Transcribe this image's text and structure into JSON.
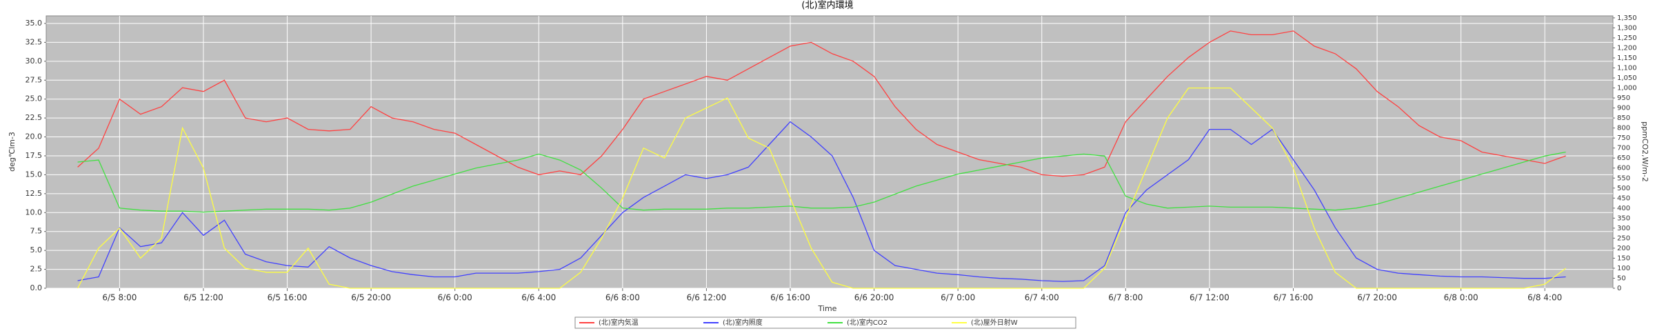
{
  "chart_data": {
    "type": "line",
    "title": "(北)室内環境",
    "x_label": "Time",
    "y_label": "deg℃lm-3",
    "y2_label": "ppmCO2,W/m-2",
    "x": [
      "6/5 6:00",
      "6/5 7:00",
      "6/5 8:00",
      "6/5 9:00",
      "6/5 10:00",
      "6/5 11:00",
      "6/5 12:00",
      "6/5 13:00",
      "6/5 14:00",
      "6/5 15:00",
      "6/5 16:00",
      "6/5 17:00",
      "6/5 18:00",
      "6/5 19:00",
      "6/5 20:00",
      "6/5 21:00",
      "6/5 22:00",
      "6/5 23:00",
      "6/6 0:00",
      "6/6 1:00",
      "6/6 2:00",
      "6/6 3:00",
      "6/6 4:00",
      "6/6 5:00",
      "6/6 6:00",
      "6/6 7:00",
      "6/6 8:00",
      "6/6 9:00",
      "6/6 10:00",
      "6/6 11:00",
      "6/6 12:00",
      "6/6 13:00",
      "6/6 14:00",
      "6/6 15:00",
      "6/6 16:00",
      "6/6 17:00",
      "6/6 18:00",
      "6/6 19:00",
      "6/6 20:00",
      "6/6 21:00",
      "6/6 22:00",
      "6/6 23:00",
      "6/7 0:00",
      "6/7 1:00",
      "6/7 2:00",
      "6/7 3:00",
      "6/7 4:00",
      "6/7 5:00",
      "6/7 6:00",
      "6/7 7:00",
      "6/7 8:00",
      "6/7 9:00",
      "6/7 10:00",
      "6/7 11:00",
      "6/7 12:00",
      "6/7 13:00",
      "6/7 14:00",
      "6/7 15:00",
      "6/7 16:00",
      "6/7 17:00",
      "6/7 18:00",
      "6/7 19:00",
      "6/7 20:00",
      "6/7 21:00",
      "6/7 22:00",
      "6/7 23:00",
      "6/8 0:00",
      "6/8 1:00",
      "6/8 2:00",
      "6/8 3:00",
      "6/8 4:00",
      "6/8 5:00"
    ],
    "xlim": [
      "6/5 4:30",
      "6/8 7:15"
    ],
    "xticks": [
      "6/5 8:00",
      "6/5 12:00",
      "6/5 16:00",
      "6/5 20:00",
      "6/6 0:00",
      "6/6 4:00",
      "6/6 8:00",
      "6/6 12:00",
      "6/6 16:00",
      "6/6 20:00",
      "6/7 0:00",
      "6/7 4:00",
      "6/7 8:00",
      "6/7 12:00",
      "6/7 16:00",
      "6/7 20:00",
      "6/8 0:00",
      "6/8 4:00"
    ],
    "ylim": [
      0,
      36
    ],
    "yticks": [
      {
        "value": 0,
        "label": "0.0"
      },
      2.5,
      {
        "value": 5,
        "label": "5.0"
      },
      7.5,
      {
        "value": 10,
        "label": "10.0"
      },
      12.5,
      {
        "value": 15,
        "label": "15.0"
      },
      17.5,
      {
        "value": 20,
        "label": "20.0"
      },
      22.5,
      {
        "value": 25,
        "label": "25.0"
      },
      27.5,
      {
        "value": 30,
        "label": "30.0"
      },
      32.5,
      {
        "value": 35,
        "label": "35.0"
      }
    ],
    "y2lim": [
      0,
      1360
    ],
    "y2ticks": [
      0,
      50,
      100,
      150,
      200,
      250,
      300,
      350,
      400,
      450,
      500,
      550,
      600,
      650,
      700,
      750,
      800,
      850,
      900,
      950,
      {
        "value": 1000,
        "label": "1,000"
      },
      {
        "value": 1050,
        "label": "1,050"
      },
      {
        "value": 1100,
        "label": "1,100"
      },
      {
        "value": 1150,
        "label": "1,150"
      },
      {
        "value": 1200,
        "label": "1,200"
      },
      {
        "value": 1250,
        "label": "1,250"
      },
      {
        "value": 1300,
        "label": "1,300"
      },
      {
        "value": 1350,
        "label": "1,350"
      }
    ],
    "grid": true,
    "series": [
      {
        "name": "(北)室内気温",
        "color": "#ff4040",
        "values": [
          16,
          18.5,
          25,
          23,
          24,
          26.5,
          26,
          27.5,
          22.5,
          22,
          22.5,
          21,
          20.8,
          21,
          24,
          22.5,
          22,
          21,
          20.5,
          19,
          17.5,
          16,
          15,
          15.5,
          15,
          17.5,
          21,
          25,
          26,
          27,
          28,
          27.5,
          29,
          30.5,
          32,
          32.5,
          31,
          30,
          28,
          24,
          21,
          19,
          18,
          17,
          16.5,
          16,
          15,
          14.8,
          15,
          16,
          22,
          25,
          28,
          30.5,
          32.5,
          34,
          33.5,
          33.5,
          34,
          32,
          31,
          29,
          26,
          24,
          21.5,
          20,
          19.5,
          18,
          17.5,
          17,
          16.5,
          17.5
        ]
      },
      {
        "name": "(北)室内照度",
        "color": "#4040ff",
        "values": [
          1,
          1.5,
          8,
          5.5,
          6,
          10,
          7,
          9,
          4.5,
          3.5,
          3,
          2.8,
          5.5,
          4,
          3,
          2.2,
          1.8,
          1.5,
          1.5,
          2,
          2,
          2,
          2.2,
          2.5,
          4,
          7,
          10,
          12,
          13.5,
          15,
          14.5,
          15,
          16,
          19,
          22,
          20,
          17.5,
          12,
          5,
          3,
          2.5,
          2,
          1.8,
          1.5,
          1.3,
          1.2,
          1,
          0.9,
          1,
          3,
          10,
          13,
          15,
          17,
          21,
          21,
          19,
          21,
          17,
          13,
          8,
          4,
          2.5,
          2,
          1.8,
          1.6,
          1.5,
          1.5,
          1.4,
          1.3,
          1.3,
          1.5
        ]
      },
      {
        "name": "(北)室内CO2",
        "color": "#40e040",
        "axis": "y2",
        "values": [
          630,
          640,
          400,
          390,
          385,
          385,
          380,
          385,
          390,
          395,
          395,
          395,
          390,
          400,
          430,
          470,
          510,
          540,
          570,
          600,
          620,
          640,
          670,
          640,
          590,
          500,
          400,
          390,
          395,
          395,
          395,
          400,
          400,
          405,
          410,
          400,
          400,
          405,
          430,
          470,
          510,
          540,
          570,
          590,
          610,
          630,
          650,
          660,
          670,
          660,
          460,
          420,
          400,
          405,
          410,
          405,
          405,
          405,
          400,
          395,
          390,
          400,
          420,
          450,
          480,
          510,
          540,
          570,
          600,
          630,
          660,
          680
        ]
      },
      {
        "name": "(北)屋外日射W",
        "color": "#ffff40",
        "axis": "y2",
        "values": [
          0,
          200,
          300,
          150,
          250,
          800,
          600,
          200,
          100,
          80,
          80,
          200,
          20,
          0,
          0,
          0,
          0,
          0,
          0,
          0,
          0,
          0,
          0,
          0,
          80,
          250,
          450,
          700,
          650,
          850,
          900,
          950,
          750,
          700,
          450,
          200,
          30,
          0,
          0,
          0,
          0,
          0,
          0,
          0,
          0,
          0,
          0,
          0,
          0,
          100,
          350,
          600,
          850,
          1000,
          1000,
          1000,
          900,
          800,
          600,
          300,
          80,
          0,
          0,
          0,
          0,
          0,
          0,
          0,
          0,
          0,
          20,
          100
        ]
      }
    ]
  }
}
